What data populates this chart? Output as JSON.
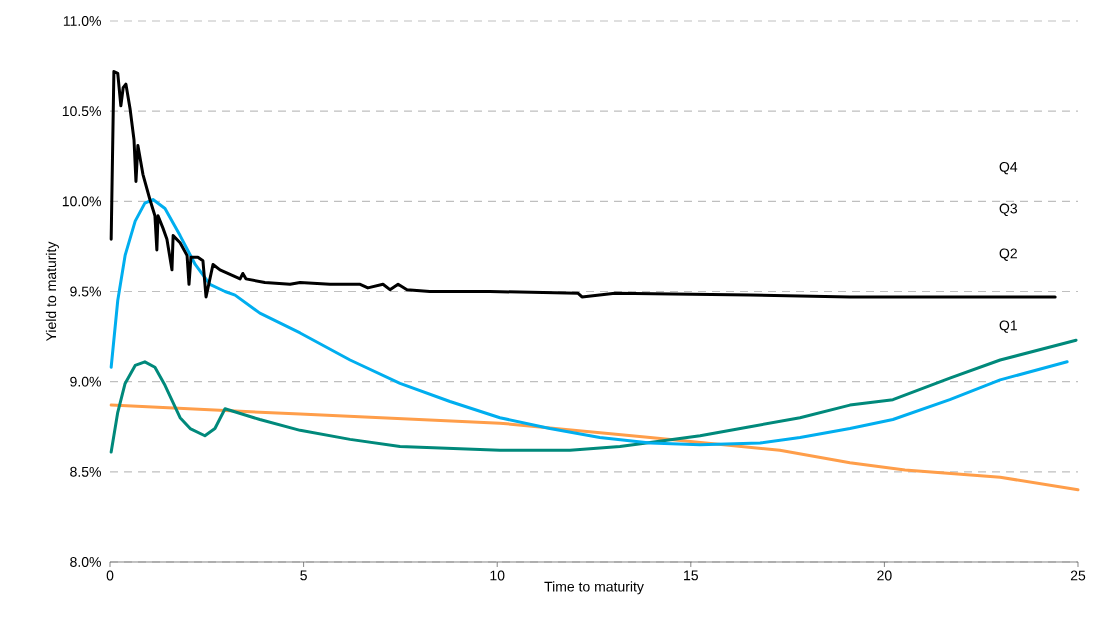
{
  "chart_data": {
    "type": "line",
    "xlabel": "Time to maturity",
    "ylabel": "Yield to maturity",
    "xlim": [
      0,
      25
    ],
    "xticks": [
      0,
      5,
      10,
      15,
      20,
      25
    ],
    "ylim": [
      8.0,
      11.0
    ],
    "yticks": [
      {
        "value": 8.0,
        "label": "8.0%"
      },
      {
        "value": 8.5,
        "label": "8.5%"
      },
      {
        "value": 9.0,
        "label": "9.0%"
      },
      {
        "value": 9.5,
        "label": "9.5%"
      },
      {
        "value": 10.0,
        "label": "10.0%"
      },
      {
        "value": 10.5,
        "label": "10.5%"
      },
      {
        "value": 11.0,
        "label": "11.0%"
      }
    ],
    "grid": "y",
    "annotations": [
      "Q4",
      "Q3",
      "Q2",
      "Q1"
    ],
    "series": [
      {
        "color": "#ff9e4a",
        "x": [
          0.03,
          4.91,
          10.07,
          13.95,
          17.3,
          19.11,
          20.53,
          22.99,
          25
        ],
        "values": [
          8.87,
          8.82,
          8.77,
          8.69,
          8.62,
          8.55,
          8.51,
          8.47,
          8.4
        ]
      },
      {
        "color": "#00897b",
        "x": [
          0.03,
          0.2,
          0.39,
          0.65,
          0.9,
          1.16,
          1.42,
          1.81,
          2.07,
          2.45,
          2.71,
          2.97,
          3.87,
          4.91,
          6.2,
          7.49,
          8.78,
          10.07,
          11.88,
          13.17,
          14.19,
          15.24,
          16.53,
          17.82,
          19.11,
          20.22,
          21.69,
          22.99,
          24.95
        ],
        "values": [
          8.61,
          8.83,
          8.99,
          9.09,
          9.11,
          9.08,
          8.98,
          8.8,
          8.74,
          8.7,
          8.74,
          8.85,
          8.79,
          8.73,
          8.68,
          8.64,
          8.63,
          8.62,
          8.62,
          8.64,
          8.67,
          8.7,
          8.75,
          8.8,
          8.87,
          8.9,
          9.02,
          9.12,
          9.23
        ]
      },
      {
        "color": "#00aeef",
        "x": [
          0.03,
          0.2,
          0.39,
          0.65,
          0.9,
          1.11,
          1.42,
          1.81,
          2.2,
          2.58,
          2.97,
          3.23,
          3.87,
          4.91,
          6.2,
          7.49,
          8.78,
          10.07,
          11.36,
          12.65,
          13.95,
          15.24,
          16.79,
          17.82,
          19.11,
          20.22,
          21.69,
          22.99,
          24.72
        ],
        "values": [
          9.08,
          9.45,
          9.7,
          9.89,
          9.99,
          10.01,
          9.96,
          9.81,
          9.65,
          9.54,
          9.5,
          9.48,
          9.38,
          9.27,
          9.12,
          8.99,
          8.89,
          8.8,
          8.74,
          8.69,
          8.66,
          8.65,
          8.66,
          8.69,
          8.74,
          8.79,
          8.9,
          9.01,
          9.11
        ]
      },
      {
        "color": "#000000",
        "x": [
          0.03,
          0.1,
          0.2,
          0.28,
          0.34,
          0.41,
          0.52,
          0.62,
          0.67,
          0.72,
          0.85,
          1.03,
          1.16,
          1.21,
          1.24,
          1.37,
          1.47,
          1.6,
          1.63,
          1.81,
          1.99,
          2.04,
          2.09,
          2.27,
          2.4,
          2.48,
          2.66,
          2.84,
          3.36,
          3.43,
          3.51,
          4.0,
          4.65,
          4.91,
          5.68,
          6.46,
          6.66,
          7.05,
          7.23,
          7.44,
          7.67,
          8.26,
          9.81,
          12.09,
          12.19,
          13.04,
          16.53,
          19.11,
          24.41
        ],
        "values": [
          9.79,
          10.72,
          10.71,
          10.53,
          10.63,
          10.65,
          10.51,
          10.34,
          10.11,
          10.31,
          10.15,
          10.01,
          9.92,
          9.73,
          9.92,
          9.85,
          9.79,
          9.62,
          9.81,
          9.77,
          9.7,
          9.54,
          9.69,
          9.69,
          9.67,
          9.47,
          9.65,
          9.62,
          9.57,
          9.6,
          9.57,
          9.55,
          9.54,
          9.55,
          9.54,
          9.54,
          9.52,
          9.54,
          9.51,
          9.54,
          9.51,
          9.5,
          9.5,
          9.49,
          9.47,
          9.49,
          9.48,
          9.47,
          9.47
        ]
      }
    ]
  }
}
